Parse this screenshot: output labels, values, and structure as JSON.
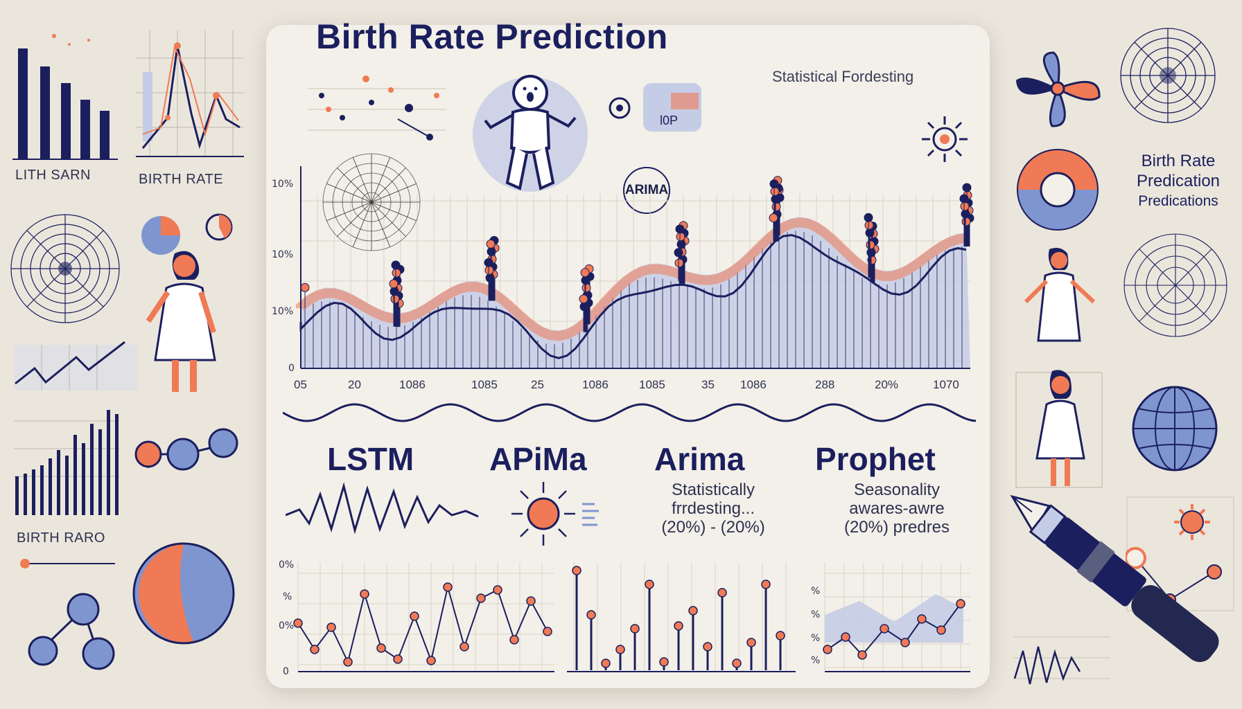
{
  "header": {
    "title": "Birth Rate Prediction",
    "subtitle": "Statistical Fordesting"
  },
  "badge": {
    "label": "ARIMA"
  },
  "main_chart": {
    "y_ticks": [
      "10%",
      "10%",
      "10%",
      "0"
    ],
    "x_ticks": [
      "05",
      "20",
      "1086",
      "1085",
      "25",
      "1086",
      "1085",
      "35",
      "1086",
      "288",
      "20%",
      "1070"
    ]
  },
  "models": [
    {
      "name": "LSTM",
      "desc": []
    },
    {
      "name": "APiMa",
      "desc": []
    },
    {
      "name": "Arima",
      "desc": [
        "Statistically",
        "frrdesting...",
        "(20%) - (20%)"
      ]
    },
    {
      "name": "Prophet",
      "desc": [
        "Seasonality",
        "awares-awre",
        "(20%) predres"
      ]
    }
  ],
  "bottom_charts": {
    "y_ticks": [
      "0%",
      "%",
      "0%",
      "0"
    ],
    "right_ticks": [
      "%",
      "%",
      "%",
      "%"
    ]
  },
  "left_side": {
    "label_1": "LITH SARN",
    "label_2": "BIRTH RATE",
    "label_3": "BIRTH RARO"
  },
  "right_side": {
    "label_lines": [
      "Birth Rate",
      "Predication",
      "Predications"
    ]
  },
  "colors": {
    "navy": "#1b1f5e",
    "orange": "#f07a55",
    "blue": "#7f95cf",
    "lavender": "#c5cce6",
    "background": "#ebe6dc",
    "panel": "#f3f0e9"
  },
  "icons": [
    "baby-icon",
    "sun-icon",
    "woman-icon",
    "fountain-pen-icon",
    "globe-icon",
    "pie-chart-icon",
    "radar-icon",
    "pinwheel-icon"
  ]
}
